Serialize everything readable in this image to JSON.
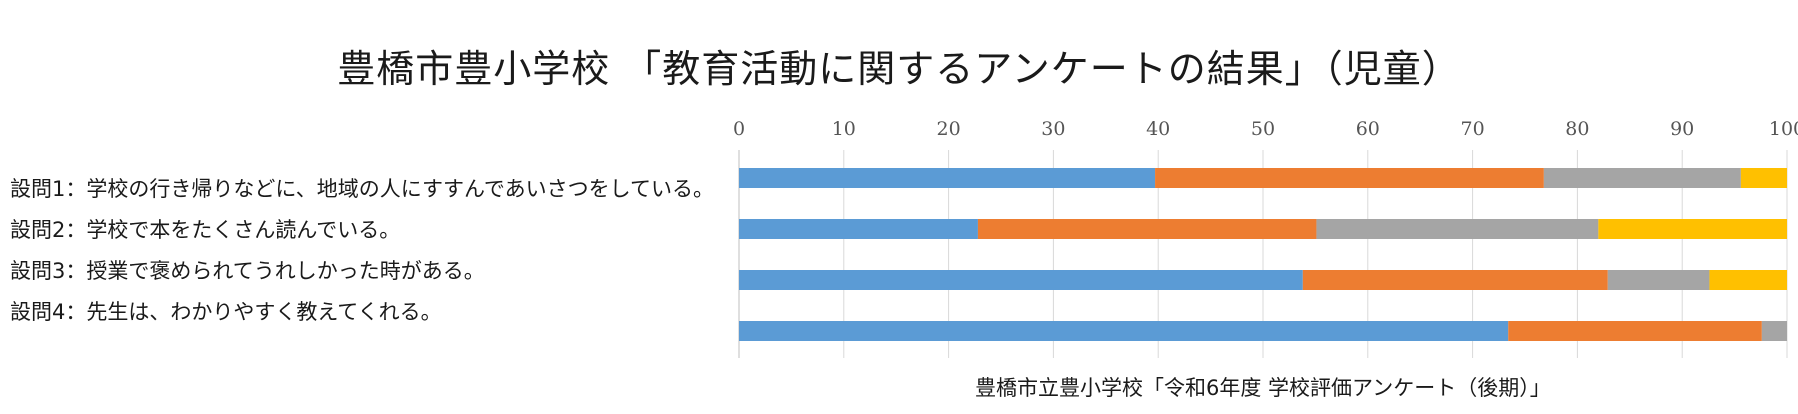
{
  "chart_data": {
    "type": "bar",
    "orientation": "horizontal",
    "stacked": true,
    "title": "豊橋市豊小学校 「教育活動に関するアンケートの結果」（児童）",
    "xlabel": "豊橋市立豊小学校「令和6年度 学校評価アンケート（後期）」",
    "ylabel": "",
    "xlim": [
      0,
      100
    ],
    "xticks": [
      0,
      10,
      20,
      30,
      40,
      50,
      60,
      70,
      80,
      90,
      100
    ],
    "x_axis_position": "top",
    "grid": true,
    "categories": [
      "設問1：学校の行き帰りなどに、地域の人にすすんであいさつをしている。",
      "設問2：学校で本をたくさん読んでいる。",
      "設問3：授業で褒められてうれしかった時がある。",
      "設問4：先生は、わかりやすく教えてくれる。"
    ],
    "series": [
      {
        "color": "#5B9BD5",
        "values": [
          39.7,
          22.8,
          53.8,
          73.4
        ]
      },
      {
        "color": "#ED7D31",
        "values": [
          37.1,
          32.3,
          29.1,
          24.2
        ]
      },
      {
        "color": "#A5A5A5",
        "values": [
          18.8,
          26.9,
          9.7,
          2.4
        ]
      },
      {
        "color": "#FFC000",
        "values": [
          4.4,
          18.0,
          7.4,
          0.0
        ]
      }
    ]
  }
}
